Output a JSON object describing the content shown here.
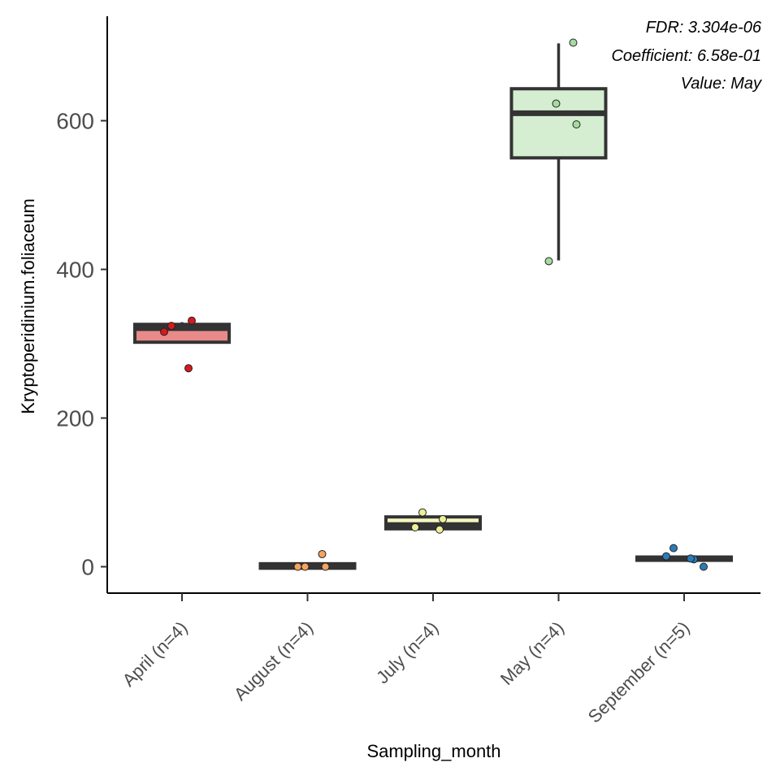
{
  "chart_data": {
    "type": "box",
    "xlabel": "Sampling_month",
    "ylabel": "Kryptoperidinium.foliaceum",
    "ylim": [
      -35,
      740
    ],
    "yticks": [
      0,
      200,
      400,
      600
    ],
    "annotations": [
      "FDR: 3.304e-06",
      "Coefficient: 6.58e-01",
      "Value: May"
    ],
    "grid": false,
    "legend": "none",
    "categories": [
      "April (n=4)",
      "August (n=4)",
      "July (n=4)",
      "May (n=4)",
      "September (n=5)"
    ],
    "boxes": [
      {
        "category": "April (n=4)",
        "fill": "#e88a8a",
        "point_color": "#d7191c",
        "min": 302,
        "q1": 302,
        "median": 321,
        "q3": 326,
        "max": 329,
        "points": [
          316,
          331,
          324,
          267
        ]
      },
      {
        "category": "August (n=4)",
        "fill": "#f8c089",
        "point_color": "#f4a460",
        "min": -2,
        "q1": -2,
        "median": 1,
        "q3": 4,
        "max": 4,
        "points": [
          0,
          0,
          0,
          17
        ]
      },
      {
        "category": "July (n=4)",
        "fill": "#f5f5c0",
        "point_color": "#eeee99",
        "min": 51,
        "q1": 51,
        "median": 56,
        "q3": 67,
        "max": 67,
        "points": [
          53,
          64,
          73,
          50
        ]
      },
      {
        "category": "May (n=4)",
        "fill": "#d5eed2",
        "point_color": "#a6dba0",
        "min": 412,
        "q1": 550,
        "median": 610,
        "q3": 643,
        "max": 704,
        "points": [
          411,
          595,
          623,
          705
        ]
      },
      {
        "category": "September (n=5)",
        "fill": "#2c7bb6",
        "point_color": "#2c7bb6",
        "min": 9,
        "q1": 9,
        "median": 11,
        "q3": 13,
        "max": 13,
        "points": [
          14,
          10,
          25,
          11,
          0
        ]
      }
    ]
  }
}
